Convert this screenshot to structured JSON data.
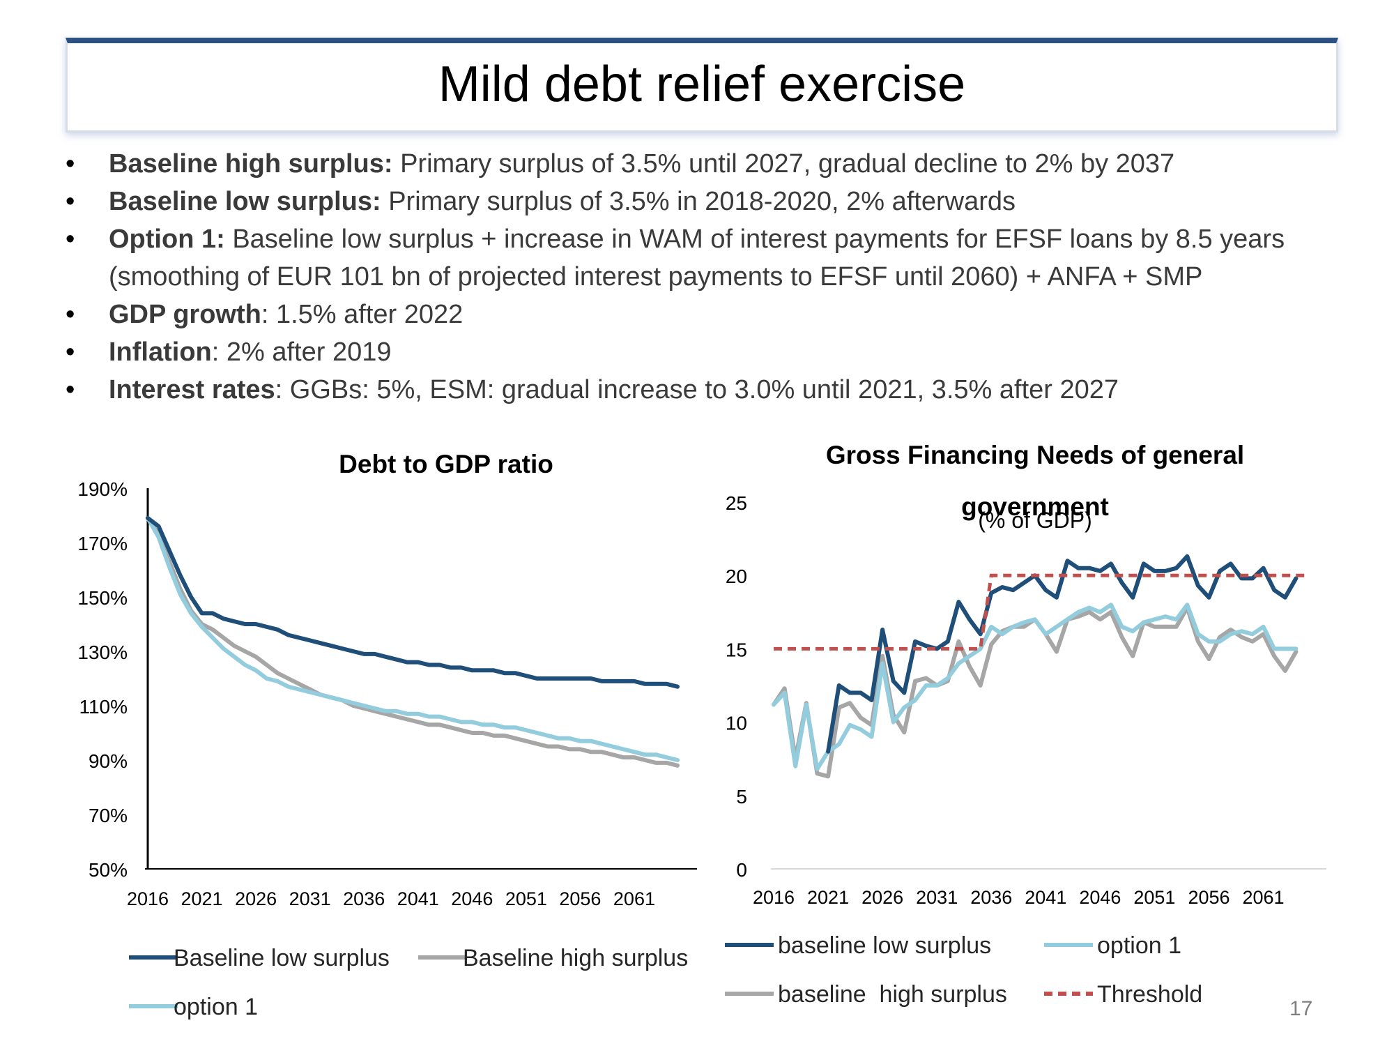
{
  "slide": {
    "title": "Mild debt relief exercise",
    "page_number": "17",
    "bullets": [
      {
        "bold": "Baseline high surplus:",
        "text": " Primary surplus of 3.5% until 2027, gradual decline to 2% by 2037"
      },
      {
        "bold": "Baseline low surplus:",
        "text": " Primary surplus of 3.5% in 2018-2020, 2% afterwards"
      },
      {
        "bold": "Option 1:",
        "text": " Baseline low surplus + increase in WAM of interest payments for EFSF loans by 8.5 years (smoothing of EUR 101 bn of projected interest payments to EFSF until 2060) + ANFA + SMP"
      },
      {
        "bold": "GDP growth",
        "text": ": 1.5% after 2022"
      },
      {
        "bold": "Inflation",
        "text": ": 2% after 2019"
      },
      {
        "bold": "Interest rates",
        "text": ": GGBs: 5%, ESM: gradual increase to 3.0% until 2021, 3.5% after 2027"
      }
    ]
  },
  "colors": {
    "low": "#1f4e79",
    "high": "#a6a6a6",
    "option": "#93cddd",
    "threshold": "#c0504d"
  },
  "chart_data": [
    {
      "type": "line",
      "title": "Debt to GDP ratio",
      "x": [
        2016,
        2017,
        2018,
        2019,
        2020,
        2021,
        2022,
        2023,
        2024,
        2025,
        2026,
        2027,
        2028,
        2029,
        2030,
        2031,
        2032,
        2033,
        2034,
        2035,
        2036,
        2037,
        2038,
        2039,
        2040,
        2041,
        2042,
        2043,
        2044,
        2045,
        2046,
        2047,
        2048,
        2049,
        2050,
        2051,
        2052,
        2053,
        2054,
        2055,
        2056,
        2057,
        2058,
        2059,
        2060,
        2061,
        2062,
        2063,
        2064,
        2065
      ],
      "xticks": [
        "2016",
        "2021",
        "2026",
        "2031",
        "2036",
        "2041",
        "2046",
        "2051",
        "2056",
        "2061"
      ],
      "yticks": [
        "190%",
        "170%",
        "150%",
        "130%",
        "110%",
        "90%",
        "70%",
        "50%"
      ],
      "ylim": [
        50,
        190
      ],
      "yunit": "%",
      "legend_position": "bottom",
      "series": [
        {
          "name": "Baseline low surplus",
          "key": "low",
          "values": [
            179,
            176,
            167,
            158,
            150,
            144,
            144,
            142,
            141,
            140,
            140,
            139,
            138,
            136,
            135,
            134,
            133,
            132,
            131,
            130,
            129,
            129,
            128,
            127,
            126,
            126,
            125,
            125,
            124,
            124,
            123,
            123,
            123,
            122,
            122,
            121,
            120,
            120,
            120,
            120,
            120,
            120,
            119,
            119,
            119,
            119,
            118,
            118,
            118,
            117
          ]
        },
        {
          "name": "Baseline high surplus",
          "key": "high",
          "values": [
            179,
            173,
            163,
            153,
            145,
            140,
            138,
            135,
            132,
            130,
            128,
            125,
            122,
            120,
            118,
            116,
            114,
            113,
            112,
            110,
            109,
            108,
            107,
            106,
            105,
            104,
            103,
            103,
            102,
            101,
            100,
            100,
            99,
            99,
            98,
            97,
            96,
            95,
            95,
            94,
            94,
            93,
            93,
            92,
            91,
            91,
            90,
            89,
            89,
            88
          ]
        },
        {
          "name": "option 1",
          "key": "option",
          "values": [
            179,
            172,
            161,
            151,
            144,
            139,
            135,
            131,
            128,
            125,
            123,
            120,
            119,
            117,
            116,
            115,
            114,
            113,
            112,
            111,
            110,
            109,
            108,
            108,
            107,
            107,
            106,
            106,
            105,
            104,
            104,
            103,
            103,
            102,
            102,
            101,
            100,
            99,
            98,
            98,
            97,
            97,
            96,
            95,
            94,
            93,
            92,
            92,
            91,
            90
          ]
        }
      ]
    },
    {
      "type": "line",
      "title": "Gross Financing Needs of general government",
      "subtitle": "(% of  GDP)",
      "x": [
        2016,
        2017,
        2018,
        2019,
        2020,
        2021,
        2022,
        2023,
        2024,
        2025,
        2026,
        2027,
        2028,
        2029,
        2030,
        2031,
        2032,
        2033,
        2034,
        2035,
        2036,
        2037,
        2038,
        2039,
        2040,
        2041,
        2042,
        2043,
        2044,
        2045,
        2046,
        2047,
        2048,
        2049,
        2050,
        2051,
        2052,
        2053,
        2054,
        2055,
        2056,
        2057,
        2058,
        2059,
        2060,
        2061,
        2062,
        2063,
        2064,
        2065
      ],
      "xticks": [
        "2016",
        "2021",
        "2026",
        "2031",
        "2036",
        "2041",
        "2046",
        "2051",
        "2056",
        "2061"
      ],
      "yticks": [
        "25",
        "20",
        "15",
        "10",
        "5",
        "0"
      ],
      "ylim": [
        0,
        25
      ],
      "legend_position": "bottom",
      "series": [
        {
          "name": "baseline low surplus",
          "key": "low",
          "values": [
            null,
            null,
            null,
            null,
            null,
            8,
            12.5,
            12,
            12,
            11.5,
            16.3,
            12.8,
            12,
            15.5,
            15.2,
            15,
            15.5,
            18.2,
            17,
            16,
            18.8,
            19.2,
            19,
            19.5,
            20,
            19,
            18.5,
            21,
            20.5,
            20.5,
            20.3,
            20.8,
            19.5,
            18.5,
            20.8,
            20.3,
            20.3,
            20.5,
            21.3,
            19.3,
            18.5,
            20.3,
            20.8,
            19.8,
            19.8,
            20.5,
            19,
            18.5,
            19.8,
            null
          ]
        },
        {
          "name": "option 1",
          "key": "option",
          "values": [
            11.2,
            12,
            7,
            11.2,
            6.8,
            8,
            8.5,
            9.8,
            9.5,
            9,
            14,
            10,
            11,
            11.5,
            12.5,
            12.5,
            13,
            14,
            14.5,
            15,
            16.5,
            16,
            16.5,
            16.8,
            17,
            16,
            16.5,
            17,
            17.5,
            17.8,
            17.5,
            18,
            16.5,
            16.2,
            16.8,
            17,
            17.2,
            17,
            18,
            16,
            15.5,
            15.5,
            16,
            16.2,
            16,
            16.5,
            15,
            15,
            15,
            null
          ]
        },
        {
          "name": "baseline  high surplus",
          "key": "high",
          "values": [
            11.2,
            12.3,
            7.5,
            11.3,
            6.5,
            6.3,
            11,
            11.3,
            10.3,
            9.8,
            14.5,
            10.5,
            9.3,
            12.8,
            13,
            12.5,
            12.8,
            15.5,
            13.8,
            12.5,
            15.3,
            16.2,
            16.5,
            16.5,
            17,
            16,
            14.8,
            17,
            17.2,
            17.5,
            17,
            17.5,
            15.8,
            14.5,
            16.8,
            16.5,
            16.5,
            16.5,
            17.8,
            15.5,
            14.3,
            15.8,
            16.3,
            15.8,
            15.5,
            16,
            14.5,
            13.5,
            14.8,
            null
          ]
        },
        {
          "name": "Threshold",
          "key": "threshold",
          "values": [
            15,
            15,
            15,
            15,
            15,
            15,
            15,
            15,
            15,
            15,
            15,
            15,
            15,
            15,
            15,
            15,
            15,
            15,
            15,
            15,
            20,
            20,
            20,
            20,
            20,
            20,
            20,
            20,
            20,
            20,
            20,
            20,
            20,
            20,
            20,
            20,
            20,
            20,
            20,
            20,
            20,
            20,
            20,
            20,
            20,
            20,
            20,
            20,
            20,
            20
          ]
        }
      ]
    }
  ]
}
